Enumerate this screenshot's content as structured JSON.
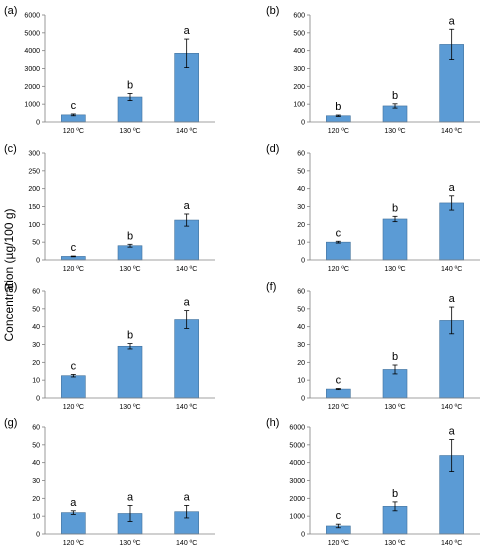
{
  "figure": {
    "ylabel": "Concentration (µg/100 g)",
    "bar_color": "#5b9bd5",
    "bar_border_color": "#41719c"
  },
  "chart_data": [
    {
      "panel": "(a)",
      "type": "bar",
      "categories": [
        "120 ºC",
        "130 ºC",
        "140 ºC"
      ],
      "values": [
        400,
        1400,
        3850
      ],
      "errors": [
        50,
        200,
        800
      ],
      "letters": [
        "c",
        "b",
        "a"
      ],
      "ylim": [
        0,
        6000
      ],
      "yticks": [
        0,
        1000,
        2000,
        3000,
        4000,
        5000,
        6000
      ]
    },
    {
      "panel": "(b)",
      "type": "bar",
      "categories": [
        "120 ºC",
        "130 ºC",
        "140 ºC"
      ],
      "values": [
        35,
        90,
        435
      ],
      "errors": [
        4,
        12,
        85
      ],
      "letters": [
        "b",
        "b",
        "a"
      ],
      "ylim": [
        0,
        600
      ],
      "yticks": [
        0,
        100,
        200,
        300,
        400,
        500,
        600
      ]
    },
    {
      "panel": "(c)",
      "type": "bar",
      "categories": [
        "120 ºC",
        "130 ºC",
        "140 ºC"
      ],
      "values": [
        10,
        40,
        112
      ],
      "errors": [
        1,
        4,
        17
      ],
      "letters": [
        "c",
        "b",
        "a"
      ],
      "ylim": [
        0,
        300
      ],
      "yticks": [
        0,
        50,
        100,
        150,
        200,
        250,
        300
      ]
    },
    {
      "panel": "(d)",
      "type": "bar",
      "categories": [
        "120 ºC",
        "130 ºC",
        "140 ºC"
      ],
      "values": [
        10,
        23,
        32
      ],
      "errors": [
        0.5,
        1.5,
        4
      ],
      "letters": [
        "c",
        "b",
        "a"
      ],
      "ylim": [
        0,
        60
      ],
      "yticks": [
        0,
        10,
        20,
        30,
        40,
        50,
        60
      ]
    },
    {
      "panel": "(e)",
      "type": "bar",
      "categories": [
        "120 ºC",
        "130 ºC",
        "140 ºC"
      ],
      "values": [
        12.5,
        29,
        44
      ],
      "errors": [
        0.7,
        1.5,
        5
      ],
      "letters": [
        "c",
        "b",
        "a"
      ],
      "ylim": [
        0,
        60
      ],
      "yticks": [
        0,
        10,
        20,
        30,
        40,
        50,
        60
      ]
    },
    {
      "panel": "(f)",
      "type": "bar",
      "categories": [
        "120 ºC",
        "130 ºC",
        "140 ºC"
      ],
      "values": [
        5,
        16,
        43.5
      ],
      "errors": [
        0.3,
        2.5,
        7.5
      ],
      "letters": [
        "c",
        "b",
        "a"
      ],
      "ylim": [
        0,
        60
      ],
      "yticks": [
        0,
        10,
        20,
        30,
        40,
        50,
        60
      ]
    },
    {
      "panel": "(g)",
      "type": "bar",
      "categories": [
        "120 ºC",
        "130 ºC",
        "140 ºC"
      ],
      "values": [
        12,
        11.5,
        12.5
      ],
      "errors": [
        1,
        4.5,
        3.5
      ],
      "letters": [
        "a",
        "a",
        "a"
      ],
      "ylim": [
        0,
        60
      ],
      "yticks": [
        0,
        10,
        20,
        30,
        40,
        50,
        60
      ]
    },
    {
      "panel": "(h)",
      "type": "bar",
      "categories": [
        "120 ºC",
        "130 ºC",
        "140 ºC"
      ],
      "values": [
        450,
        1550,
        4400
      ],
      "errors": [
        100,
        250,
        900
      ],
      "letters": [
        "c",
        "b",
        "a"
      ],
      "ylim": [
        0,
        6000
      ],
      "yticks": [
        0,
        1000,
        2000,
        3000,
        4000,
        5000,
        6000
      ]
    }
  ]
}
